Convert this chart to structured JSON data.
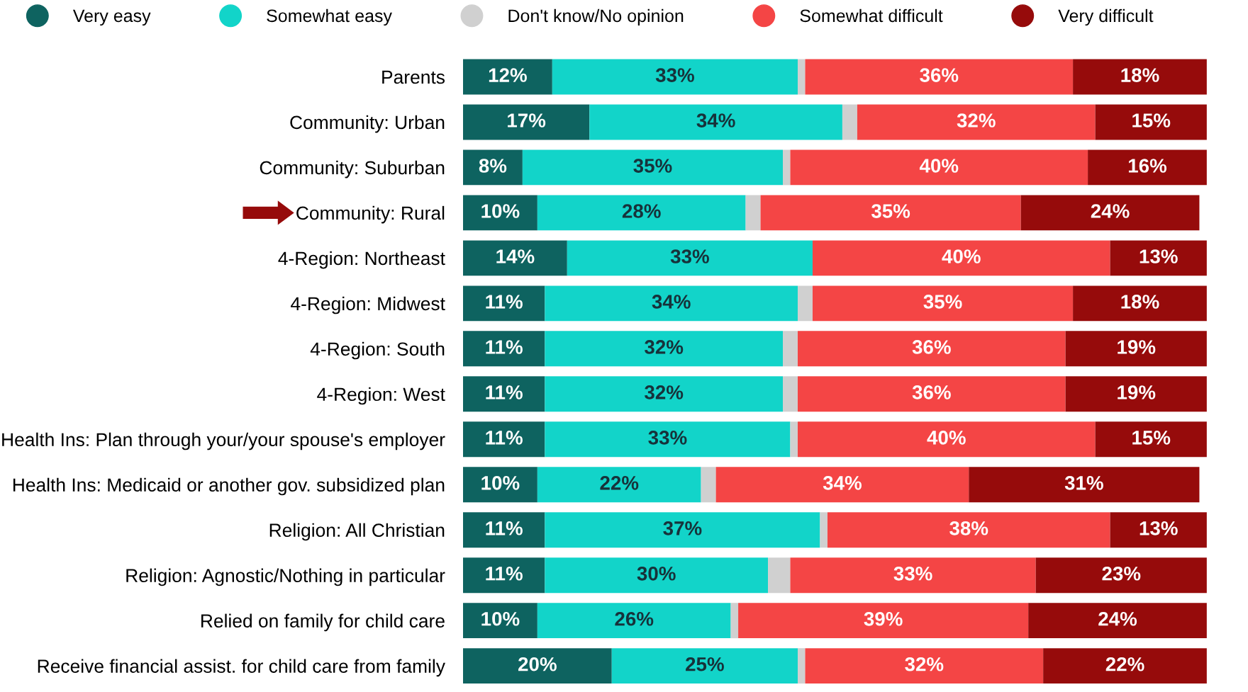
{
  "chart_data": {
    "type": "bar",
    "orientation": "horizontal",
    "stacked": true,
    "legend": "top",
    "marker": "circle",
    "tick_labels": "y",
    "grid": false,
    "xlim": [
      0,
      100
    ],
    "categories": [
      "Parents",
      "Community: Urban",
      "Community: Suburban",
      "Community: Rural",
      "4-Region: Northeast",
      "4-Region: Midwest",
      "4-Region: South",
      "4-Region: West",
      "Health Ins: Plan through your/your spouse's employer",
      "Health Ins: Medicaid or another gov. subsidized plan",
      "Religion: All Christian",
      "Religion: Agnostic/Nothing in particular",
      "Relied on family for child care",
      "Receive financial assist. for child care from family"
    ],
    "series": [
      {
        "name": "Very easy",
        "color": "#0e6360",
        "values": [
          12,
          17,
          8,
          10,
          14,
          11,
          11,
          11,
          11,
          10,
          11,
          11,
          10,
          20
        ],
        "value_labels": [
          "12%",
          "17%",
          "8%",
          "10%",
          "14%",
          "11%",
          "11%",
          "11%",
          "11%",
          "10%",
          "11%",
          "11%",
          "10%",
          "20%"
        ]
      },
      {
        "name": "Somewhat easy",
        "color": "#12d4c9",
        "values": [
          33,
          34,
          35,
          28,
          33,
          34,
          32,
          32,
          33,
          22,
          37,
          30,
          26,
          25
        ],
        "value_labels": [
          "33%",
          "34%",
          "35%",
          "28%",
          "33%",
          "34%",
          "32%",
          "32%",
          "33%",
          "22%",
          "37%",
          "30%",
          "26%",
          "25%"
        ]
      },
      {
        "name": "Don't know/No opinion",
        "color": "#d0d0d0",
        "values": [
          1,
          2,
          1,
          2,
          0,
          2,
          2,
          2,
          1,
          2,
          1,
          3,
          1,
          1
        ]
      },
      {
        "name": "Somewhat difficult",
        "color": "#f44545",
        "values": [
          36,
          32,
          40,
          35,
          40,
          35,
          36,
          36,
          40,
          34,
          38,
          33,
          39,
          32
        ],
        "value_labels": [
          "36%",
          "32%",
          "40%",
          "35%",
          "40%",
          "35%",
          "36%",
          "36%",
          "40%",
          "34%",
          "38%",
          "33%",
          "39%",
          "32%"
        ]
      },
      {
        "name": "Very difficult",
        "color": "#960b0b",
        "values": [
          18,
          15,
          16,
          24,
          13,
          18,
          19,
          19,
          15,
          31,
          13,
          23,
          24,
          22
        ],
        "value_labels": [
          "18%",
          "15%",
          "16%",
          "24%",
          "13%",
          "18%",
          "19%",
          "19%",
          "15%",
          "31%",
          "13%",
          "23%",
          "24%",
          "22%"
        ]
      }
    ]
  }
}
